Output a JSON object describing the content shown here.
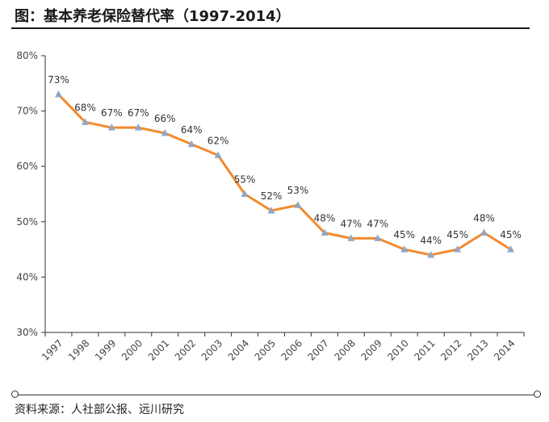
{
  "figure": {
    "title": "图：基本养老保险替代率（1997-2014）",
    "source": "资料来源：人社部公报、远川研究"
  },
  "chart_data": {
    "type": "line",
    "title": "",
    "xlabel": "",
    "ylabel": "",
    "categories": [
      "1997",
      "1998",
      "1999",
      "2000",
      "2001",
      "2002",
      "2003",
      "2004",
      "2005",
      "2006",
      "2007",
      "2008",
      "2009",
      "2010",
      "2011",
      "2012",
      "2013",
      "2014"
    ],
    "series": [
      {
        "values": [
          73,
          68,
          67,
          67,
          66,
          64,
          62,
          55,
          52,
          53,
          48,
          47,
          47,
          45,
          44,
          45,
          48,
          45
        ],
        "data_labels": [
          "73%",
          "68%",
          "67%",
          "67%",
          "66%",
          "64%",
          "62%",
          "55%",
          "52%",
          "53%",
          "48%",
          "47%",
          "47%",
          "45%",
          "44%",
          "45%",
          "48%",
          "45%"
        ]
      }
    ],
    "ylim": [
      30,
      80
    ],
    "yticks": [
      30,
      40,
      50,
      60,
      70,
      80
    ],
    "ytick_labels": [
      "30%",
      "40%",
      "50%",
      "60%",
      "70%",
      "80%"
    ],
    "grid": false,
    "legend": "none",
    "colors": {
      "line": "#F28A2E",
      "marker": "#8FA8C8",
      "axis": "#333333"
    }
  }
}
